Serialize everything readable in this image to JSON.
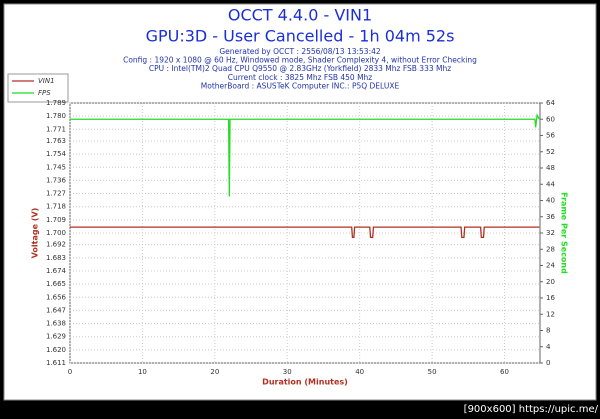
{
  "chart_data": {
    "type": "line",
    "title": "OCCT 4.4.0 - VIN1",
    "subtitle": "GPU:3D - User Cancelled - 1h 04m 52s",
    "info": [
      "Generated by OCCT : 2556/08/13 13:53:42",
      "Config : 1920 x 1080 @ 60 Hz, Windowed mode, Shader Complexity 4, without Error Checking",
      "CPU : Intel(TM)2 Quad CPU Q9550 @ 2.83GHz (Yorkfield) 2833 Mhz FSB 333 Mhz",
      "Current clock : 3825 Mhz FSB 450 Mhz",
      "MotherBoard : ASUSTeK Computer INC.: P5Q DELUXE"
    ],
    "xlabel": "Duration (Minutes)",
    "ylabel": "Voltage (V)",
    "y2label": "Frame Per Second",
    "xlim": [
      0,
      64.9
    ],
    "xticks": [
      0,
      10,
      20,
      30,
      40,
      50,
      60
    ],
    "ylim": [
      1.611,
      1.789
    ],
    "yticks": [
      1.611,
      {
        "value": 1.62,
        "label": "1.620"
      },
      1.629,
      1.638,
      1.647,
      1.656,
      1.665,
      1.674,
      1.683,
      1.692,
      {
        "value": 1.7,
        "label": "1.700"
      },
      1.709,
      1.718,
      1.727,
      1.736,
      1.745,
      1.754,
      1.763,
      1.771,
      {
        "value": 1.78,
        "label": "1.780"
      },
      1.789
    ],
    "y2lim": [
      0,
      64
    ],
    "y2ticks": [
      0,
      4,
      8,
      12,
      16,
      20,
      24,
      28,
      32,
      36,
      40,
      44,
      48,
      52,
      56,
      60,
      64
    ],
    "grid": true,
    "series": [
      {
        "name": "VIN1",
        "color": "#b03020",
        "x": [
          0,
          38.9,
          39.0,
          39.2,
          39.3,
          41.4,
          41.5,
          41.8,
          41.9,
          54.0,
          54.1,
          54.4,
          54.5,
          56.7,
          56.8,
          57.1,
          57.2,
          64.8
        ],
        "values": [
          1.704,
          1.704,
          1.697,
          1.697,
          1.704,
          1.704,
          1.697,
          1.697,
          1.704,
          1.704,
          1.697,
          1.697,
          1.704,
          1.704,
          1.697,
          1.697,
          1.704,
          1.704
        ]
      },
      {
        "name": "FPS",
        "color": "#22dd22",
        "axis": "y2",
        "x": [
          0,
          5,
          10,
          15,
          21.9,
          22.0,
          22.1,
          22.4,
          30,
          40,
          50,
          60,
          64.2,
          64.3,
          64.5,
          64.8
        ],
        "values": [
          60,
          60,
          60,
          60,
          60,
          41,
          60,
          60,
          60,
          60,
          60,
          60,
          60,
          58,
          61,
          60
        ]
      }
    ],
    "watermark": "[900x600] https://upic.me/"
  }
}
